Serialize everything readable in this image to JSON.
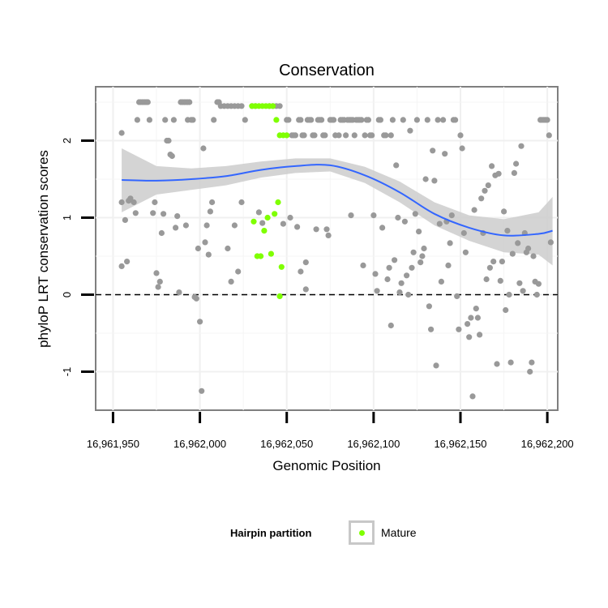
{
  "chart_data": {
    "type": "scatter",
    "title": "Conservation",
    "xlabel": "Genomic Position",
    "ylabel": "phyloP LRT conservation scores",
    "xlim": [
      16961940,
      16962206
    ],
    "ylim": [
      -1.5,
      2.7
    ],
    "x_ticks": [
      16961950,
      16962000,
      16962050,
      16962100,
      16962150,
      16962200
    ],
    "x_tick_labels": [
      "16,961,950",
      "16,962,000",
      "16,962,050",
      "16,962,100",
      "16,962,150",
      "16,962,200"
    ],
    "y_ticks": [
      -1,
      0,
      1,
      2
    ],
    "y_tick_labels": [
      "-1",
      "0",
      "1",
      "2"
    ],
    "reference_line": {
      "y": 0,
      "style": "dashed"
    },
    "grid": true,
    "series": [
      {
        "name": "",
        "color": "#999999",
        "points": [
          [
            16961955,
            2.1
          ],
          [
            16961955,
            1.2
          ],
          [
            16961955,
            0.37
          ],
          [
            16961957,
            0.97
          ],
          [
            16961958,
            0.43
          ],
          [
            16961959,
            1.22
          ],
          [
            16961960,
            1.25
          ],
          [
            16961962,
            1.2
          ],
          [
            16961963,
            1.06
          ],
          [
            16961965,
            2.5
          ],
          [
            16961966,
            2.5
          ],
          [
            16961967,
            2.5
          ],
          [
            16961968,
            2.5
          ],
          [
            16961969,
            2.5
          ],
          [
            16961970,
            2.5
          ],
          [
            16961971,
            2.27
          ],
          [
            16961964,
            2.27
          ],
          [
            16961973,
            1.06
          ],
          [
            16961974,
            1.2
          ],
          [
            16961975,
            0.28
          ],
          [
            16961976,
            0.1
          ],
          [
            16961977,
            0.17
          ],
          [
            16961978,
            0.8
          ],
          [
            16961979,
            1.05
          ],
          [
            16961980,
            2.27
          ],
          [
            16961981,
            2.0
          ],
          [
            16961982,
            2.0
          ],
          [
            16961983,
            1.82
          ],
          [
            16961984,
            1.8
          ],
          [
            16961985,
            2.27
          ],
          [
            16961986,
            0.87
          ],
          [
            16961987,
            1.02
          ],
          [
            16961988,
            0.03
          ],
          [
            16961989,
            2.5
          ],
          [
            16961990,
            2.5
          ],
          [
            16961991,
            2.5
          ],
          [
            16961992,
            2.5
          ],
          [
            16961993,
            2.5
          ],
          [
            16961994,
            2.5
          ],
          [
            16961992,
            0.9
          ],
          [
            16961993,
            2.27
          ],
          [
            16961995,
            2.27
          ],
          [
            16961996,
            2.27
          ],
          [
            16961997,
            -0.03
          ],
          [
            16961998,
            -0.05
          ],
          [
            16961999,
            0.6
          ],
          [
            16962000,
            -0.35
          ],
          [
            16962001,
            -1.25
          ],
          [
            16962002,
            1.9
          ],
          [
            16962003,
            0.68
          ],
          [
            16962004,
            0.9
          ],
          [
            16962005,
            0.52
          ],
          [
            16962006,
            1.08
          ],
          [
            16962007,
            1.2
          ],
          [
            16962008,
            2.27
          ],
          [
            16962010,
            2.5
          ],
          [
            16962011,
            2.5
          ],
          [
            16962012,
            2.45
          ],
          [
            16962014,
            2.45
          ],
          [
            16962016,
            2.45
          ],
          [
            16962018,
            2.45
          ],
          [
            16962020,
            2.45
          ],
          [
            16962022,
            2.45
          ],
          [
            16962024,
            2.45
          ],
          [
            16962016,
            0.6
          ],
          [
            16962018,
            0.17
          ],
          [
            16962020,
            0.9
          ],
          [
            16962022,
            0.3
          ],
          [
            16962024,
            1.2
          ],
          [
            16962026,
            2.27
          ],
          [
            16962030,
            2.45
          ],
          [
            16962032,
            2.45
          ],
          [
            16962034,
            1.07
          ],
          [
            16962036,
            0.93
          ],
          [
            16962040,
            2.45
          ],
          [
            16962042,
            2.45
          ],
          [
            16962044,
            2.45
          ],
          [
            16962046,
            2.45
          ],
          [
            16962048,
            0.92
          ],
          [
            16962050,
            2.27
          ],
          [
            16962051,
            2.27
          ],
          [
            16962052,
            1.0
          ],
          [
            16962053,
            2.07
          ],
          [
            16962054,
            2.07
          ],
          [
            16962055,
            2.07
          ],
          [
            16962056,
            0.88
          ],
          [
            16962057,
            2.27
          ],
          [
            16962058,
            2.27
          ],
          [
            16962059,
            2.07
          ],
          [
            16962060,
            2.07
          ],
          [
            16962061,
            0.42
          ],
          [
            16962062,
            2.27
          ],
          [
            16962063,
            2.27
          ],
          [
            16962064,
            2.27
          ],
          [
            16962065,
            2.07
          ],
          [
            16962066,
            2.07
          ],
          [
            16962067,
            0.85
          ],
          [
            16962068,
            2.27
          ],
          [
            16962069,
            2.27
          ],
          [
            16962070,
            2.27
          ],
          [
            16962071,
            2.07
          ],
          [
            16962072,
            2.07
          ],
          [
            16962073,
            0.85
          ],
          [
            16962074,
            0.77
          ],
          [
            16962075,
            2.27
          ],
          [
            16962076,
            2.27
          ],
          [
            16962077,
            2.27
          ],
          [
            16962078,
            2.07
          ],
          [
            16962080,
            2.07
          ],
          [
            16962081,
            2.27
          ],
          [
            16962082,
            2.27
          ],
          [
            16962083,
            2.27
          ],
          [
            16962084,
            2.07
          ],
          [
            16962085,
            2.27
          ],
          [
            16962086,
            2.27
          ],
          [
            16962087,
            2.27
          ],
          [
            16962088,
            2.27
          ],
          [
            16962089,
            2.07
          ],
          [
            16962090,
            2.27
          ],
          [
            16962091,
            2.27
          ],
          [
            16962092,
            2.27
          ],
          [
            16962093,
            2.27
          ],
          [
            16962094,
            0.38
          ],
          [
            16962095,
            2.07
          ],
          [
            16962096,
            2.27
          ],
          [
            16962097,
            2.27
          ],
          [
            16962098,
            2.07
          ],
          [
            16962099,
            2.07
          ],
          [
            16962100,
            1.03
          ],
          [
            16962101,
            0.27
          ],
          [
            16962102,
            0.05
          ],
          [
            16962103,
            2.27
          ],
          [
            16962104,
            2.27
          ],
          [
            16962105,
            0.87
          ],
          [
            16962106,
            2.07
          ],
          [
            16962107,
            2.07
          ],
          [
            16962108,
            0.2
          ],
          [
            16962109,
            0.35
          ],
          [
            16962110,
            2.07
          ],
          [
            16962110,
            -0.4
          ],
          [
            16962111,
            2.27
          ],
          [
            16962112,
            0.45
          ],
          [
            16962113,
            1.68
          ],
          [
            16962114,
            1.0
          ],
          [
            16962115,
            0.03
          ],
          [
            16962116,
            0.15
          ],
          [
            16962117,
            2.27
          ],
          [
            16962118,
            0.95
          ],
          [
            16962119,
            0.25
          ],
          [
            16962120,
            0.0
          ],
          [
            16962121,
            2.13
          ],
          [
            16962122,
            0.35
          ],
          [
            16962123,
            0.55
          ],
          [
            16962124,
            1.05
          ],
          [
            16962125,
            2.27
          ],
          [
            16962126,
            0.82
          ],
          [
            16962127,
            0.42
          ],
          [
            16962128,
            0.5
          ],
          [
            16962129,
            0.6
          ],
          [
            16962130,
            1.5
          ],
          [
            16962131,
            2.27
          ],
          [
            16962132,
            -0.15
          ],
          [
            16962133,
            -0.45
          ],
          [
            16962134,
            1.87
          ],
          [
            16962135,
            1.48
          ],
          [
            16962136,
            -0.92
          ],
          [
            16962137,
            2.27
          ],
          [
            16962138,
            0.92
          ],
          [
            16962139,
            0.17
          ],
          [
            16962140,
            2.27
          ],
          [
            16962141,
            1.83
          ],
          [
            16962142,
            0.95
          ],
          [
            16962143,
            0.38
          ],
          [
            16962144,
            0.67
          ],
          [
            16962145,
            1.03
          ],
          [
            16962146,
            2.27
          ],
          [
            16962147,
            2.27
          ],
          [
            16962148,
            -0.02
          ],
          [
            16962149,
            -0.45
          ],
          [
            16962150,
            2.07
          ],
          [
            16962151,
            1.9
          ],
          [
            16962152,
            0.8
          ],
          [
            16962153,
            0.55
          ],
          [
            16962154,
            -0.38
          ],
          [
            16962155,
            -0.55
          ],
          [
            16962156,
            -0.3
          ],
          [
            16962157,
            -1.32
          ],
          [
            16962158,
            1.1
          ],
          [
            16962159,
            -0.18
          ],
          [
            16962160,
            -0.3
          ],
          [
            16962161,
            -0.52
          ],
          [
            16962162,
            1.25
          ],
          [
            16962163,
            0.8
          ],
          [
            16962164,
            1.35
          ],
          [
            16962165,
            0.2
          ],
          [
            16962166,
            1.42
          ],
          [
            16962167,
            0.35
          ],
          [
            16962168,
            1.67
          ],
          [
            16962169,
            0.43
          ],
          [
            16962170,
            1.55
          ],
          [
            16962171,
            -0.9
          ],
          [
            16962172,
            1.57
          ],
          [
            16962173,
            0.18
          ],
          [
            16962174,
            0.43
          ],
          [
            16962175,
            1.08
          ],
          [
            16962176,
            -0.2
          ],
          [
            16962177,
            0.83
          ],
          [
            16962178,
            0.0
          ],
          [
            16962179,
            -0.88
          ],
          [
            16962180,
            0.53
          ],
          [
            16962181,
            1.58
          ],
          [
            16962182,
            1.7
          ],
          [
            16962183,
            0.67
          ],
          [
            16962184,
            0.15
          ],
          [
            16962185,
            1.93
          ],
          [
            16962186,
            0.05
          ],
          [
            16962187,
            0.8
          ],
          [
            16962188,
            0.55
          ],
          [
            16962189,
            0.6
          ],
          [
            16962190,
            -1.0
          ],
          [
            16962191,
            -0.88
          ],
          [
            16962192,
            0.5
          ],
          [
            16962193,
            0.17
          ],
          [
            16962194,
            0.0
          ],
          [
            16962195,
            0.14
          ],
          [
            16962196,
            2.27
          ],
          [
            16962197,
            2.27
          ],
          [
            16962198,
            2.27
          ],
          [
            16962199,
            2.27
          ],
          [
            16962200,
            2.27
          ],
          [
            16962201,
            2.07
          ],
          [
            16962202,
            0.68
          ],
          [
            16962058,
            0.3
          ],
          [
            16962061,
            0.07
          ],
          [
            16962087,
            1.03
          ]
        ]
      },
      {
        "name": "Mature",
        "color": "#7fff00",
        "points": [
          [
            16962030,
            2.45
          ],
          [
            16962032,
            2.45
          ],
          [
            16962034,
            2.45
          ],
          [
            16962036,
            2.45
          ],
          [
            16962038,
            2.45
          ],
          [
            16962040,
            2.45
          ],
          [
            16962042,
            2.45
          ],
          [
            16962044,
            2.27
          ],
          [
            16962046,
            2.07
          ],
          [
            16962048,
            2.07
          ],
          [
            16962050,
            2.07
          ],
          [
            16962031,
            0.95
          ],
          [
            16962033,
            0.5
          ],
          [
            16962035,
            0.5
          ],
          [
            16962037,
            0.83
          ],
          [
            16962039,
            1.0
          ],
          [
            16962041,
            0.53
          ],
          [
            16962043,
            1.05
          ],
          [
            16962045,
            1.2
          ],
          [
            16962047,
            0.36
          ],
          [
            16962046,
            -0.02
          ]
        ]
      }
    ],
    "smooth": {
      "color": "#3366ff",
      "band_color": "#cccccc",
      "x": [
        16961955,
        16961975,
        16961995,
        16962015,
        16962035,
        16962055,
        16962075,
        16962095,
        16962115,
        16962135,
        16962155,
        16962175,
        16962195,
        16962203
      ],
      "y": [
        1.49,
        1.48,
        1.5,
        1.54,
        1.62,
        1.67,
        1.68,
        1.55,
        1.33,
        1.05,
        0.87,
        0.77,
        0.79,
        0.83
      ],
      "lower": [
        1.07,
        1.3,
        1.36,
        1.42,
        1.52,
        1.58,
        1.6,
        1.45,
        1.2,
        0.9,
        0.7,
        0.55,
        0.52,
        0.38
      ],
      "upper": [
        1.9,
        1.67,
        1.64,
        1.67,
        1.73,
        1.77,
        1.77,
        1.66,
        1.47,
        1.2,
        1.03,
        0.98,
        1.07,
        1.27
      ]
    },
    "legend": {
      "title": "Hairpin partition",
      "placement": "bottom",
      "entries": [
        {
          "label": "Mature",
          "color": "#7fff00"
        }
      ]
    }
  }
}
